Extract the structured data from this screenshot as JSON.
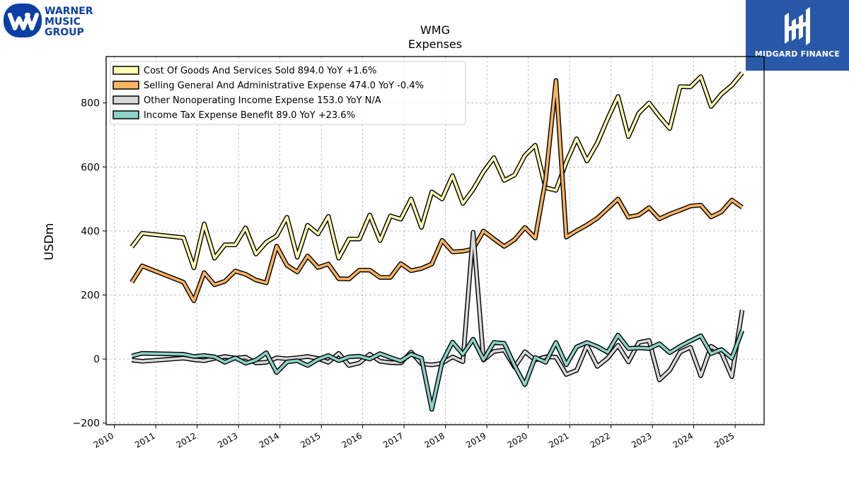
{
  "logos": {
    "left_lines": [
      "WARNER",
      "MUSIC",
      "GROUP"
    ],
    "right_text": "MIDGARD FINANCE",
    "left_color": "#0b3fa3",
    "right_color": "#2a58a9"
  },
  "chart_data": {
    "type": "line",
    "title": "WMG",
    "subtitle": "Expenses",
    "ylabel": "USDm",
    "xlabel": "",
    "xlim": [
      2009.8,
      2025.7
    ],
    "ylim": [
      -205,
      945
    ],
    "yticks": [
      -200,
      0,
      200,
      400,
      600,
      800
    ],
    "xticks": [
      "2010",
      "2011",
      "2012",
      "2013",
      "2014",
      "2015",
      "2016",
      "2017",
      "2018",
      "2019",
      "2020",
      "2021",
      "2022",
      "2023",
      "2024",
      "2025"
    ],
    "grid": true,
    "legend_position": "top-left",
    "series": [
      {
        "name": "Cost Of Goods And Services Sold  894.0 YoY +1.6%",
        "color": "#ffffb3",
        "points": [
          [
            2010.42,
            350
          ],
          [
            2010.67,
            393
          ],
          [
            2011.67,
            379
          ],
          [
            2011.92,
            285
          ],
          [
            2012.17,
            422
          ],
          [
            2012.42,
            315
          ],
          [
            2012.67,
            357
          ],
          [
            2012.92,
            357
          ],
          [
            2013.17,
            410
          ],
          [
            2013.42,
            328
          ],
          [
            2013.67,
            365
          ],
          [
            2013.92,
            385
          ],
          [
            2014.17,
            443
          ],
          [
            2014.42,
            318
          ],
          [
            2014.67,
            418
          ],
          [
            2014.92,
            391
          ],
          [
            2015.17,
            446
          ],
          [
            2015.42,
            315
          ],
          [
            2015.67,
            375
          ],
          [
            2015.92,
            375
          ],
          [
            2016.17,
            450
          ],
          [
            2016.42,
            370
          ],
          [
            2016.67,
            447
          ],
          [
            2016.92,
            437
          ],
          [
            2017.17,
            500
          ],
          [
            2017.42,
            411
          ],
          [
            2017.67,
            522
          ],
          [
            2017.92,
            500
          ],
          [
            2018.17,
            573
          ],
          [
            2018.42,
            486
          ],
          [
            2018.67,
            530
          ],
          [
            2018.92,
            585
          ],
          [
            2019.17,
            629
          ],
          [
            2019.42,
            558
          ],
          [
            2019.67,
            575
          ],
          [
            2019.92,
            636
          ],
          [
            2020.17,
            668
          ],
          [
            2020.42,
            535
          ],
          [
            2020.67,
            527
          ],
          [
            2020.92,
            615
          ],
          [
            2021.17,
            688
          ],
          [
            2021.42,
            619
          ],
          [
            2021.67,
            675
          ],
          [
            2021.92,
            751
          ],
          [
            2022.17,
            820
          ],
          [
            2022.42,
            695
          ],
          [
            2022.67,
            768
          ],
          [
            2022.92,
            800
          ],
          [
            2023.17,
            758
          ],
          [
            2023.42,
            720
          ],
          [
            2023.67,
            851
          ],
          [
            2023.92,
            850
          ],
          [
            2024.17,
            882
          ],
          [
            2024.42,
            789
          ],
          [
            2024.67,
            828
          ],
          [
            2024.92,
            855
          ],
          [
            2025.17,
            894
          ]
        ]
      },
      {
        "name": "Selling General And Administrative Expense  474.0 YoY -0.4%",
        "color": "#fdb462",
        "points": [
          [
            2010.42,
            240
          ],
          [
            2010.67,
            291
          ],
          [
            2011.67,
            240
          ],
          [
            2011.92,
            182
          ],
          [
            2012.17,
            270
          ],
          [
            2012.42,
            232
          ],
          [
            2012.67,
            243
          ],
          [
            2012.92,
            275
          ],
          [
            2013.17,
            265
          ],
          [
            2013.42,
            247
          ],
          [
            2013.67,
            238
          ],
          [
            2013.92,
            353
          ],
          [
            2014.17,
            293
          ],
          [
            2014.42,
            272
          ],
          [
            2014.67,
            322
          ],
          [
            2014.92,
            286
          ],
          [
            2015.17,
            297
          ],
          [
            2015.42,
            251
          ],
          [
            2015.67,
            250
          ],
          [
            2015.92,
            278
          ],
          [
            2016.17,
            278
          ],
          [
            2016.42,
            255
          ],
          [
            2016.67,
            255
          ],
          [
            2016.92,
            298
          ],
          [
            2017.17,
            276
          ],
          [
            2017.42,
            283
          ],
          [
            2017.67,
            297
          ],
          [
            2017.92,
            371
          ],
          [
            2018.17,
            335
          ],
          [
            2018.42,
            337
          ],
          [
            2018.67,
            344
          ],
          [
            2018.92,
            400
          ],
          [
            2019.17,
            375
          ],
          [
            2019.42,
            352
          ],
          [
            2019.67,
            373
          ],
          [
            2019.92,
            411
          ],
          [
            2020.17,
            378
          ],
          [
            2020.42,
            560
          ],
          [
            2020.67,
            870
          ],
          [
            2020.92,
            381
          ],
          [
            2021.17,
            401
          ],
          [
            2021.42,
            419
          ],
          [
            2021.67,
            440
          ],
          [
            2021.92,
            470
          ],
          [
            2022.17,
            500
          ],
          [
            2022.42,
            443
          ],
          [
            2022.67,
            450
          ],
          [
            2022.92,
            473
          ],
          [
            2023.17,
            438
          ],
          [
            2023.42,
            453
          ],
          [
            2023.67,
            465
          ],
          [
            2023.92,
            478
          ],
          [
            2024.17,
            481
          ],
          [
            2024.42,
            444
          ],
          [
            2024.67,
            460
          ],
          [
            2024.92,
            497
          ],
          [
            2025.17,
            474
          ]
        ]
      },
      {
        "name": "Other Nonoperating Income Expense  153.0 YoY N/A",
        "color": "#d9d9d9",
        "points": [
          [
            2010.42,
            -3
          ],
          [
            2010.67,
            -7
          ],
          [
            2011.67,
            3
          ],
          [
            2011.92,
            -2
          ],
          [
            2012.17,
            -5
          ],
          [
            2012.42,
            2
          ],
          [
            2012.67,
            8
          ],
          [
            2012.92,
            3
          ],
          [
            2013.17,
            6
          ],
          [
            2013.42,
            -12
          ],
          [
            2013.67,
            -10
          ],
          [
            2013.92,
            4
          ],
          [
            2014.17,
            1
          ],
          [
            2014.42,
            4
          ],
          [
            2014.67,
            8
          ],
          [
            2014.92,
            2
          ],
          [
            2015.17,
            -10
          ],
          [
            2015.42,
            18
          ],
          [
            2015.67,
            -20
          ],
          [
            2015.92,
            -12
          ],
          [
            2016.17,
            15
          ],
          [
            2016.42,
            -7
          ],
          [
            2016.67,
            -11
          ],
          [
            2016.92,
            -12
          ],
          [
            2017.17,
            22
          ],
          [
            2017.42,
            -15
          ],
          [
            2017.67,
            -18
          ],
          [
            2017.92,
            -13
          ],
          [
            2018.17,
            7
          ],
          [
            2018.42,
            -8
          ],
          [
            2018.67,
            396
          ],
          [
            2018.92,
            -3
          ],
          [
            2019.17,
            24
          ],
          [
            2019.42,
            28
          ],
          [
            2019.67,
            -25
          ],
          [
            2019.92,
            23
          ],
          [
            2020.17,
            -3
          ],
          [
            2020.42,
            7
          ],
          [
            2020.67,
            6
          ],
          [
            2020.92,
            -48
          ],
          [
            2021.17,
            -35
          ],
          [
            2021.42,
            42
          ],
          [
            2021.67,
            -23
          ],
          [
            2021.92,
            3
          ],
          [
            2022.17,
            43
          ],
          [
            2022.42,
            -9
          ],
          [
            2022.67,
            52
          ],
          [
            2022.92,
            58
          ],
          [
            2023.17,
            -65
          ],
          [
            2023.42,
            -35
          ],
          [
            2023.67,
            22
          ],
          [
            2023.92,
            37
          ],
          [
            2024.17,
            -52
          ],
          [
            2024.42,
            40
          ],
          [
            2024.67,
            19
          ],
          [
            2024.92,
            -55
          ],
          [
            2025.17,
            153
          ]
        ]
      },
      {
        "name": "Income Tax Expense Benefit  89.0 YoY +23.6%",
        "color": "#8dd3c7",
        "points": [
          [
            2010.42,
            10
          ],
          [
            2010.67,
            18
          ],
          [
            2011.67,
            15
          ],
          [
            2011.92,
            8
          ],
          [
            2012.17,
            11
          ],
          [
            2012.42,
            7
          ],
          [
            2012.67,
            -10
          ],
          [
            2012.92,
            4
          ],
          [
            2013.17,
            -13
          ],
          [
            2013.42,
            -3
          ],
          [
            2013.67,
            20
          ],
          [
            2013.92,
            -42
          ],
          [
            2014.17,
            -9
          ],
          [
            2014.42,
            -5
          ],
          [
            2014.67,
            -20
          ],
          [
            2014.92,
            -1
          ],
          [
            2015.17,
            11
          ],
          [
            2015.42,
            -5
          ],
          [
            2015.67,
            7
          ],
          [
            2015.92,
            9
          ],
          [
            2016.17,
            0
          ],
          [
            2016.42,
            17
          ],
          [
            2016.67,
            5
          ],
          [
            2016.92,
            -6
          ],
          [
            2017.17,
            15
          ],
          [
            2017.42,
            3
          ],
          [
            2017.67,
            -157
          ],
          [
            2017.92,
            -10
          ],
          [
            2018.17,
            53
          ],
          [
            2018.42,
            15
          ],
          [
            2018.67,
            62
          ],
          [
            2018.92,
            -2
          ],
          [
            2019.17,
            52
          ],
          [
            2019.42,
            49
          ],
          [
            2019.67,
            -20
          ],
          [
            2019.92,
            -80
          ],
          [
            2020.17,
            5
          ],
          [
            2020.42,
            -10
          ],
          [
            2020.67,
            52
          ],
          [
            2020.92,
            -18
          ],
          [
            2021.17,
            38
          ],
          [
            2021.42,
            52
          ],
          [
            2021.67,
            39
          ],
          [
            2021.92,
            21
          ],
          [
            2022.17,
            75
          ],
          [
            2022.42,
            33
          ],
          [
            2022.67,
            35
          ],
          [
            2022.92,
            33
          ],
          [
            2023.17,
            48
          ],
          [
            2023.42,
            20
          ],
          [
            2023.67,
            40
          ],
          [
            2023.92,
            57
          ],
          [
            2024.17,
            73
          ],
          [
            2024.42,
            17
          ],
          [
            2024.67,
            30
          ],
          [
            2024.92,
            3
          ],
          [
            2025.17,
            89
          ]
        ]
      }
    ]
  }
}
